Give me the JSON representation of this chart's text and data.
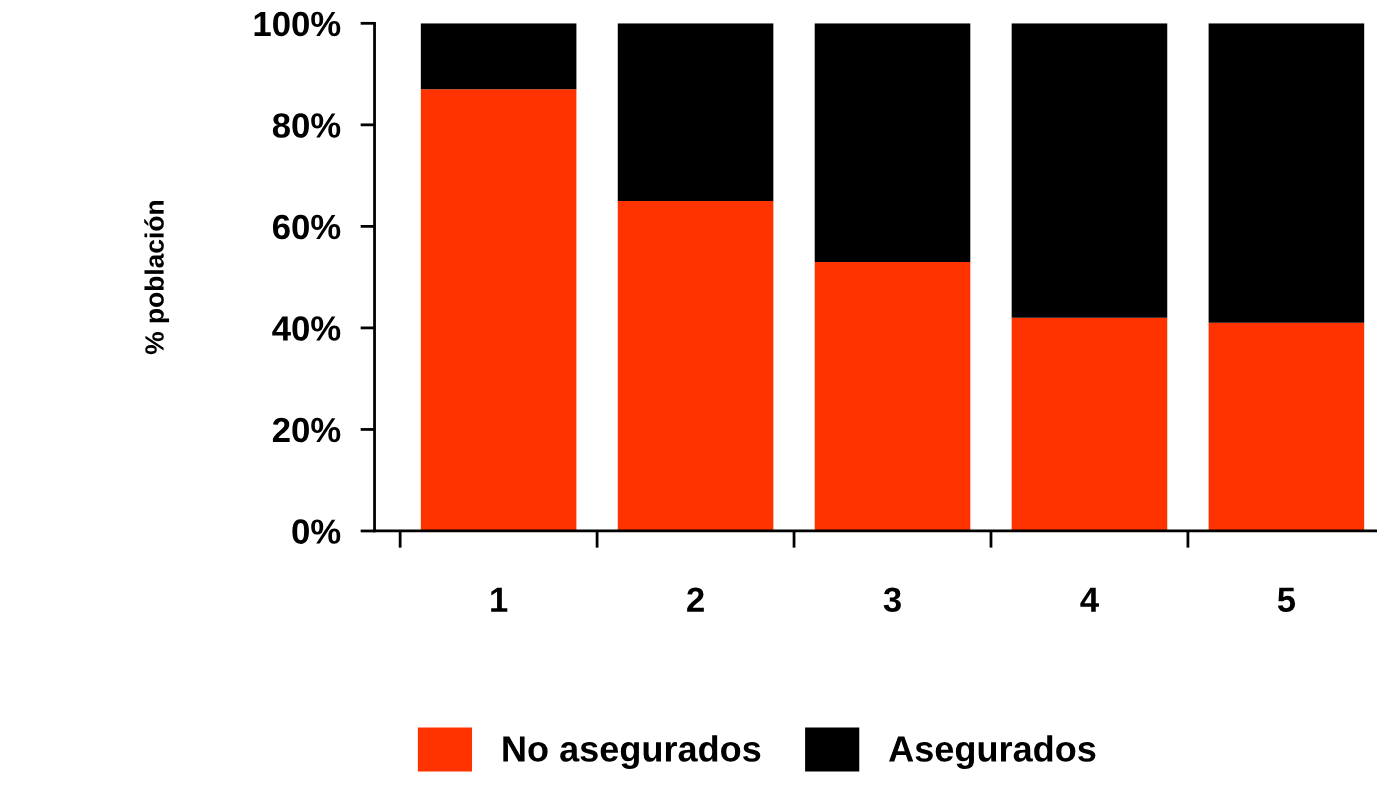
{
  "chart_data": {
    "type": "bar",
    "stacked": true,
    "ylabel": "% población",
    "categories": [
      "1",
      "2",
      "3",
      "4",
      "5"
    ],
    "series": [
      {
        "name": "No asegurados",
        "color": "#ff3300",
        "values": [
          87,
          65,
          53,
          42,
          41
        ]
      },
      {
        "name": "Asegurados",
        "color": "#000000",
        "values": [
          13,
          35,
          47,
          58,
          59
        ]
      }
    ],
    "ylim": [
      0,
      100
    ],
    "yticks": [
      {
        "value": 0,
        "label": "0%"
      },
      {
        "value": 20,
        "label": "20%"
      },
      {
        "value": 40,
        "label": "40%"
      },
      {
        "value": 60,
        "label": "60%"
      },
      {
        "value": 80,
        "label": "80%"
      },
      {
        "value": 100,
        "label": "100%"
      }
    ],
    "grid": false,
    "legend": "bottom"
  }
}
